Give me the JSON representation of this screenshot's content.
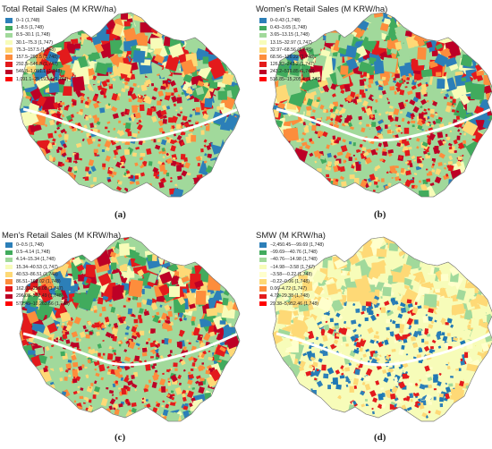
{
  "panels": [
    {
      "title": "Total Retail Sales (M KRW/ha)",
      "label": "(a)",
      "palette": [
        "#2c7fb8",
        "#41ab5d",
        "#a1d99b",
        "#f7fcb9",
        "#fed976",
        "#fd8d3c",
        "#e31a1c",
        "#bd0026"
      ],
      "legend": [
        {
          "label": "0–1 (1,748)",
          "color": "#2c7fb8"
        },
        {
          "label": "1–8.5 (1,748)",
          "color": "#41ab5d"
        },
        {
          "label": "8.5–30.1 (1,748)",
          "color": "#a1d99b"
        },
        {
          "label": "30.1–75.3 (1,747)",
          "color": "#f7fcb9"
        },
        {
          "label": "75.3–157.5 (1,748)",
          "color": "#fed976"
        },
        {
          "label": "157.5–292.5 (1,748)",
          "color": "#fd8d3c"
        },
        {
          "label": "292.5–546.8 (1,747)",
          "color": "#e31a1c"
        },
        {
          "label": "546.8–1,091.1 (1,748)",
          "color": "#bd0026"
        },
        {
          "label": "1,091.1–25,193.4 (1,748)",
          "color": "#ff0000"
        }
      ]
    },
    {
      "title": "Women’s Retail Sales (M KRW/ha)",
      "label": "(b)",
      "palette": [
        "#2c7fb8",
        "#41ab5d",
        "#a1d99b",
        "#f7fcb9",
        "#fed976",
        "#fd8d3c",
        "#e31a1c",
        "#bd0026"
      ],
      "legend": [
        {
          "label": "0–0.43 (1,748)",
          "color": "#2c7fb8"
        },
        {
          "label": "0.43–3.65 (1,748)",
          "color": "#41ab5d"
        },
        {
          "label": "3.65–13.15 (1,748)",
          "color": "#a1d99b"
        },
        {
          "label": "13.15–32.97 (1,747)",
          "color": "#f7fcb9"
        },
        {
          "label": "32.97–68.56 (1,748)",
          "color": "#fed976"
        },
        {
          "label": "68.56–126.22 (1,748)",
          "color": "#fd8d3c"
        },
        {
          "label": "126.22–243.2 (1,747)",
          "color": "#e31a1c"
        },
        {
          "label": "243.2–516.85 (1,748)",
          "color": "#bd0026"
        },
        {
          "label": "516.85–15,205.4 (1,748)",
          "color": "#ff0000"
        }
      ]
    },
    {
      "title": "Men’s Retail Sales (M KRW/ha)",
      "label": "(c)",
      "palette": [
        "#2c7fb8",
        "#41ab5d",
        "#a1d99b",
        "#f7fcb9",
        "#fed976",
        "#fd8d3c",
        "#e31a1c",
        "#bd0026"
      ],
      "legend": [
        {
          "label": "0–0.5 (1,748)",
          "color": "#2c7fb8"
        },
        {
          "label": "0.5–4.14 (1,748)",
          "color": "#41ab5d"
        },
        {
          "label": "4.14–15.34 (1,748)",
          "color": "#a1d99b"
        },
        {
          "label": "15.34–40.53 (1,747)",
          "color": "#f7fcb9"
        },
        {
          "label": "40.53–86.51 (1,748)",
          "color": "#fed976"
        },
        {
          "label": "86.51–162.02 (1,748)",
          "color": "#fd8d3c"
        },
        {
          "label": "162.02–296.08 (1,747)",
          "color": "#e31a1c"
        },
        {
          "label": "296.08–572.49 (1,748)",
          "color": "#bd0026"
        },
        {
          "label": "572.49–10,263.66 (1,748)",
          "color": "#ff0000"
        }
      ]
    },
    {
      "title": "SMW (M KRW/ha)",
      "label": "(d)",
      "palette": [
        "#f7fcb9",
        "#f7fcb9",
        "#ffffcc",
        "#fed976",
        "#fed976",
        "#a1d99b",
        "#2c7fb8",
        "#1f78b4",
        "#e31a1c"
      ],
      "legend": [
        {
          "label": "−2,450.45–−99.69 (1,748)",
          "color": "#2c7fb8"
        },
        {
          "label": "−99.69–−40.76 (1,748)",
          "color": "#41ab5d"
        },
        {
          "label": "−40.76–−14.98 (1,748)",
          "color": "#a1d99b"
        },
        {
          "label": "−14.98–−3.58 (1,747)",
          "color": "#f7fcb9"
        },
        {
          "label": "−3.58–−0.22 (1,748)",
          "color": "#ffffcc"
        },
        {
          "label": "−0.22–0.06 (1,748)",
          "color": "#fed976"
        },
        {
          "label": "0.06–4.72 (1,747)",
          "color": "#fd8d3c"
        },
        {
          "label": "4.72–29.38 (1,748)",
          "color": "#e31a1c"
        },
        {
          "label": "29.38–5,952.46 (1,748)",
          "color": "#ff0000"
        }
      ]
    }
  ]
}
